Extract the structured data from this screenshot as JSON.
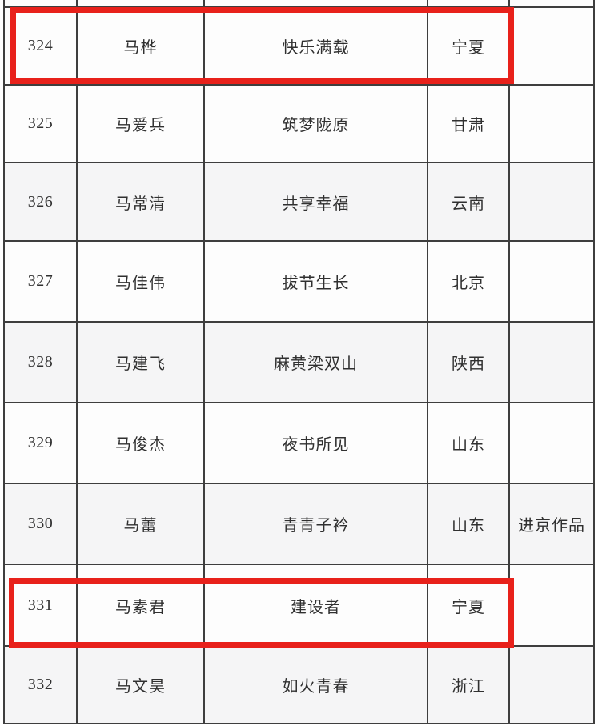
{
  "colors": {
    "highlight": "#e8211b",
    "grid": "#3e3e3e",
    "text": "#303030",
    "row": "#fdfdfd",
    "shaded_row": "#f5f5f6"
  },
  "table": {
    "rows": [
      {
        "number": "324",
        "name": "马桦",
        "title": "快乐满载",
        "province": "宁夏",
        "note": "",
        "highlighted": true,
        "shaded": false
      },
      {
        "number": "325",
        "name": "马爱兵",
        "title": "筑梦陇原",
        "province": "甘肃",
        "note": "",
        "highlighted": false,
        "shaded": false
      },
      {
        "number": "326",
        "name": "马常清",
        "title": "共享幸福",
        "province": "云南",
        "note": "",
        "highlighted": false,
        "shaded": true
      },
      {
        "number": "327",
        "name": "马佳伟",
        "title": "拔节生长",
        "province": "北京",
        "note": "",
        "highlighted": false,
        "shaded": false
      },
      {
        "number": "328",
        "name": "马建飞",
        "title": "麻黄梁双山",
        "province": "陕西",
        "note": "",
        "highlighted": false,
        "shaded": true
      },
      {
        "number": "329",
        "name": "马俊杰",
        "title": "夜书所见",
        "province": "山东",
        "note": "",
        "highlighted": false,
        "shaded": false
      },
      {
        "number": "330",
        "name": "马蕾",
        "title": "青青子衿",
        "province": "山东",
        "note": "进京作品",
        "highlighted": false,
        "shaded": true
      },
      {
        "number": "331",
        "name": "马素君",
        "title": "建设者",
        "province": "宁夏",
        "note": "",
        "highlighted": true,
        "shaded": false
      },
      {
        "number": "332",
        "name": "马文昊",
        "title": "如火青春",
        "province": "浙江",
        "note": "",
        "highlighted": false,
        "shaded": true
      }
    ]
  }
}
